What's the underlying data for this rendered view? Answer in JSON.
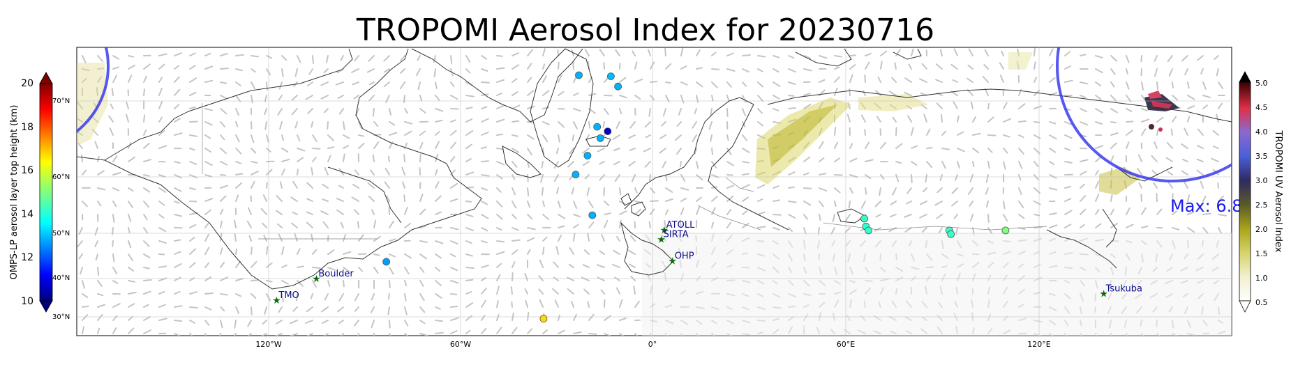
{
  "title": "TROPOMI Aerosol Index for 20230716",
  "longitude_ticks": [
    "120°W",
    "60°W",
    "0°",
    "60°E",
    "120°E"
  ],
  "latitude_ticks": [
    "30°N",
    "40°N",
    "50°N",
    "60°N",
    "70°N"
  ],
  "left_colorbar": {
    "label": "OMPS-LP aerosol layer top height (km)",
    "ticks": [
      "10",
      "12",
      "14",
      "16",
      "18",
      "20"
    ],
    "range": [
      10,
      20
    ],
    "colormap": "jet"
  },
  "right_colorbar": {
    "label": "TROPOMI UV Aerosol Index",
    "ticks": [
      "0.5",
      "1.0",
      "1.5",
      "2.0",
      "2.5",
      "3.0",
      "3.5",
      "4.0",
      "4.5",
      "5.0"
    ],
    "range": [
      0.5,
      5.0
    ]
  },
  "max_annotation": "Max: 6.8",
  "stations": [
    {
      "name": "TMO",
      "lon": -117.7,
      "lat": 34.4
    },
    {
      "name": "Boulder",
      "lon": -105.3,
      "lat": 40.0
    },
    {
      "name": "ATOLL",
      "lon": 3.1,
      "lat": 50.6
    },
    {
      "name": "SIRTA",
      "lon": 2.2,
      "lat": 48.7
    },
    {
      "name": "OHP",
      "lon": 5.7,
      "lat": 43.9
    },
    {
      "name": "Tsukuba",
      "lon": 140.1,
      "lat": 36.1
    }
  ],
  "omps_points": [
    {
      "lon": -23.5,
      "lat": 74.8,
      "height": 13.0
    },
    {
      "lon": -13.5,
      "lat": 74.6,
      "height": 13.1
    },
    {
      "lon": -11.3,
      "lat": 72.7,
      "height": 13.0
    },
    {
      "lon": -17.8,
      "lat": 66.6,
      "height": 13.0
    },
    {
      "lon": -16.8,
      "lat": 65.1,
      "height": 13.0
    },
    {
      "lon": -14.5,
      "lat": 66.0,
      "height": 10.8
    },
    {
      "lon": -20.8,
      "lat": 62.8,
      "height": 13.0
    },
    {
      "lon": -24.5,
      "lat": 60.3,
      "height": 13.0
    },
    {
      "lon": -19.3,
      "lat": 53.2,
      "height": 13.0
    },
    {
      "lon": -83.5,
      "lat": 43.7,
      "height": 12.8
    },
    {
      "lon": -34.5,
      "lat": 29.5,
      "height": 16.6
    },
    {
      "lon": 65.5,
      "lat": 52.6,
      "height": 14.3
    },
    {
      "lon": 66.0,
      "lat": 51.2,
      "height": 14.2
    },
    {
      "lon": 66.8,
      "lat": 50.5,
      "height": 14.3
    },
    {
      "lon": 92.0,
      "lat": 50.5,
      "height": 14.3
    },
    {
      "lon": 92.5,
      "lat": 49.8,
      "height": 14.3
    },
    {
      "lon": 109.5,
      "lat": 50.5,
      "height": 15.0
    }
  ],
  "map_extent": {
    "lon": [
      -180,
      180
    ],
    "lat": [
      25,
      80
    ]
  }
}
